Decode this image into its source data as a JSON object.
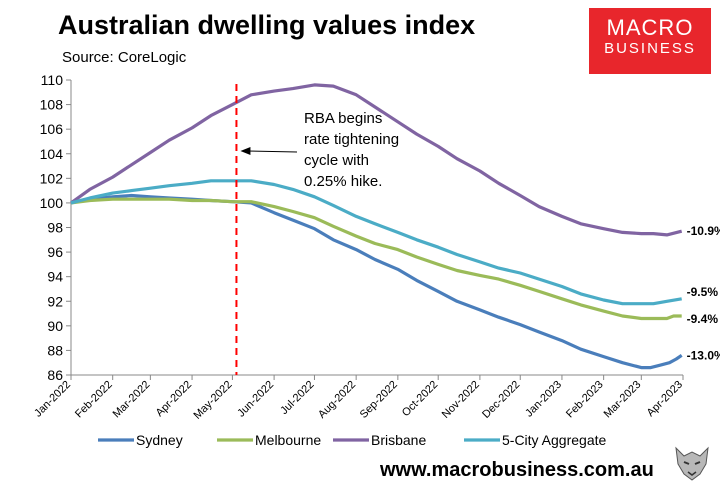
{
  "header": {
    "title": "Australian dwelling values index",
    "subtitle": "Source: CoreLogic"
  },
  "logo": {
    "line1": "MACRO",
    "line2": "BUSINESS"
  },
  "footer": {
    "website": "www.macrobusiness.com.au"
  },
  "chart_data": {
    "type": "line",
    "title": "Australian dwelling values index",
    "subtitle": "Source: CoreLogic",
    "x_ticks": [
      "Jan-2022",
      "Feb-2022",
      "Mar-2022",
      "Apr-2022",
      "May-2022",
      "Jun-2022",
      "Jul-2022",
      "Aug-2022",
      "Sep-2022",
      "Oct-2022",
      "Nov-2022",
      "Dec-2022",
      "Jan-2023",
      "Feb-2023",
      "Mar-2023",
      "Apr-2023"
    ],
    "xlim": [
      "2022-01-01",
      "2023-04-01"
    ],
    "ylim": [
      86,
      110
    ],
    "y_ticks": [
      86,
      88,
      90,
      92,
      94,
      96,
      98,
      100,
      102,
      104,
      106,
      108,
      110
    ],
    "grid": false,
    "legend_position": "bottom",
    "series": [
      {
        "name": "Sydney",
        "color": "#4a7ebb",
        "end_label": "-13.0%",
        "points": [
          [
            "2022-01-01",
            100.0
          ],
          [
            "2022-01-15",
            100.3
          ],
          [
            "2022-02-01",
            100.5
          ],
          [
            "2022-02-15",
            100.6
          ],
          [
            "2022-03-01",
            100.5
          ],
          [
            "2022-03-15",
            100.4
          ],
          [
            "2022-04-01",
            100.3
          ],
          [
            "2022-04-15",
            100.2
          ],
          [
            "2022-05-01",
            100.1
          ],
          [
            "2022-05-15",
            100.0
          ],
          [
            "2022-06-01",
            99.2
          ],
          [
            "2022-06-15",
            98.6
          ],
          [
            "2022-07-01",
            97.9
          ],
          [
            "2022-07-15",
            97.0
          ],
          [
            "2022-08-01",
            96.2
          ],
          [
            "2022-08-15",
            95.4
          ],
          [
            "2022-09-01",
            94.6
          ],
          [
            "2022-09-15",
            93.7
          ],
          [
            "2022-10-01",
            92.8
          ],
          [
            "2022-10-15",
            92.0
          ],
          [
            "2022-11-01",
            91.3
          ],
          [
            "2022-11-15",
            90.7
          ],
          [
            "2022-12-01",
            90.1
          ],
          [
            "2022-12-15",
            89.5
          ],
          [
            "2023-01-01",
            88.8
          ],
          [
            "2023-01-15",
            88.1
          ],
          [
            "2023-02-01",
            87.5
          ],
          [
            "2023-02-15",
            87.0
          ],
          [
            "2023-03-01",
            86.6
          ],
          [
            "2023-03-08",
            86.6
          ],
          [
            "2023-03-15",
            86.8
          ],
          [
            "2023-03-22",
            87.0
          ],
          [
            "2023-03-27",
            87.3
          ],
          [
            "2023-03-31",
            87.6
          ]
        ]
      },
      {
        "name": "Melbourne",
        "color": "#9bbb59",
        "end_label": "-9.4%",
        "points": [
          [
            "2022-01-01",
            100.0
          ],
          [
            "2022-01-15",
            100.2
          ],
          [
            "2022-02-01",
            100.3
          ],
          [
            "2022-02-15",
            100.3
          ],
          [
            "2022-03-01",
            100.3
          ],
          [
            "2022-03-15",
            100.3
          ],
          [
            "2022-04-01",
            100.2
          ],
          [
            "2022-04-15",
            100.2
          ],
          [
            "2022-05-01",
            100.1
          ],
          [
            "2022-05-15",
            100.1
          ],
          [
            "2022-06-01",
            99.7
          ],
          [
            "2022-06-15",
            99.3
          ],
          [
            "2022-07-01",
            98.8
          ],
          [
            "2022-07-15",
            98.1
          ],
          [
            "2022-08-01",
            97.3
          ],
          [
            "2022-08-15",
            96.7
          ],
          [
            "2022-09-01",
            96.2
          ],
          [
            "2022-09-15",
            95.6
          ],
          [
            "2022-10-01",
            95.0
          ],
          [
            "2022-10-15",
            94.5
          ],
          [
            "2022-11-01",
            94.1
          ],
          [
            "2022-11-15",
            93.8
          ],
          [
            "2022-12-01",
            93.3
          ],
          [
            "2022-12-15",
            92.8
          ],
          [
            "2023-01-01",
            92.2
          ],
          [
            "2023-01-15",
            91.7
          ],
          [
            "2023-02-01",
            91.2
          ],
          [
            "2023-02-15",
            90.8
          ],
          [
            "2023-03-01",
            90.6
          ],
          [
            "2023-03-10",
            90.6
          ],
          [
            "2023-03-20",
            90.6
          ],
          [
            "2023-03-25",
            90.8
          ],
          [
            "2023-03-31",
            90.8
          ]
        ]
      },
      {
        "name": "Brisbane",
        "color": "#8064a2",
        "end_label": "-10.9%",
        "points": [
          [
            "2022-01-01",
            100.0
          ],
          [
            "2022-01-15",
            101.1
          ],
          [
            "2022-02-01",
            102.1
          ],
          [
            "2022-02-15",
            103.1
          ],
          [
            "2022-03-01",
            104.1
          ],
          [
            "2022-03-15",
            105.1
          ],
          [
            "2022-04-01",
            106.1
          ],
          [
            "2022-04-15",
            107.1
          ],
          [
            "2022-05-01",
            108.0
          ],
          [
            "2022-05-15",
            108.8
          ],
          [
            "2022-06-01",
            109.1
          ],
          [
            "2022-06-15",
            109.3
          ],
          [
            "2022-07-01",
            109.6
          ],
          [
            "2022-07-15",
            109.5
          ],
          [
            "2022-08-01",
            108.8
          ],
          [
            "2022-08-15",
            107.8
          ],
          [
            "2022-09-01",
            106.6
          ],
          [
            "2022-09-15",
            105.6
          ],
          [
            "2022-10-01",
            104.6
          ],
          [
            "2022-10-15",
            103.6
          ],
          [
            "2022-11-01",
            102.6
          ],
          [
            "2022-11-15",
            101.6
          ],
          [
            "2022-12-01",
            100.6
          ],
          [
            "2022-12-15",
            99.7
          ],
          [
            "2023-01-01",
            98.9
          ],
          [
            "2023-01-15",
            98.3
          ],
          [
            "2023-02-01",
            97.9
          ],
          [
            "2023-02-15",
            97.6
          ],
          [
            "2023-03-01",
            97.5
          ],
          [
            "2023-03-10",
            97.5
          ],
          [
            "2023-03-20",
            97.4
          ],
          [
            "2023-03-31",
            97.7
          ]
        ]
      },
      {
        "name": "5-City Aggregate",
        "color": "#4bacc6",
        "end_label": "-9.5%",
        "points": [
          [
            "2022-01-01",
            100.0
          ],
          [
            "2022-01-15",
            100.4
          ],
          [
            "2022-02-01",
            100.8
          ],
          [
            "2022-02-15",
            101.0
          ],
          [
            "2022-03-01",
            101.2
          ],
          [
            "2022-03-15",
            101.4
          ],
          [
            "2022-04-01",
            101.6
          ],
          [
            "2022-04-15",
            101.8
          ],
          [
            "2022-05-01",
            101.8
          ],
          [
            "2022-05-15",
            101.8
          ],
          [
            "2022-06-01",
            101.5
          ],
          [
            "2022-06-15",
            101.1
          ],
          [
            "2022-07-01",
            100.5
          ],
          [
            "2022-07-15",
            99.8
          ],
          [
            "2022-08-01",
            98.9
          ],
          [
            "2022-08-15",
            98.3
          ],
          [
            "2022-09-01",
            97.6
          ],
          [
            "2022-09-15",
            97.0
          ],
          [
            "2022-10-01",
            96.4
          ],
          [
            "2022-10-15",
            95.8
          ],
          [
            "2022-11-01",
            95.2
          ],
          [
            "2022-11-15",
            94.7
          ],
          [
            "2022-12-01",
            94.3
          ],
          [
            "2022-12-15",
            93.8
          ],
          [
            "2023-01-01",
            93.2
          ],
          [
            "2023-01-15",
            92.6
          ],
          [
            "2023-02-01",
            92.1
          ],
          [
            "2023-02-15",
            91.8
          ],
          [
            "2023-03-01",
            91.8
          ],
          [
            "2023-03-10",
            91.8
          ],
          [
            "2023-03-20",
            92.0
          ],
          [
            "2023-03-31",
            92.2
          ]
        ]
      }
    ],
    "annotation": {
      "text_lines": [
        "RBA begins",
        "rate tightening",
        "cycle with",
        "0.25% hike."
      ],
      "event_date": "2022-05-04",
      "line_color": "#ff0000"
    }
  }
}
